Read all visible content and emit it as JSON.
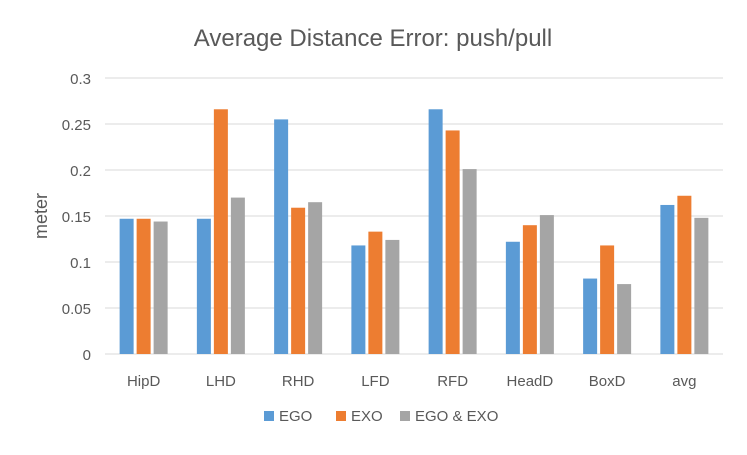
{
  "chart_data": {
    "type": "bar",
    "title": "Average Distance Error: push/pull",
    "xlabel": "",
    "ylabel": "meter",
    "ylim": [
      0,
      0.3
    ],
    "yticks": [
      "0",
      "0.05",
      "0.1",
      "0.15",
      "0.2",
      "0.25",
      "0.3"
    ],
    "ytick_values": [
      0,
      0.05,
      0.1,
      0.15,
      0.2,
      0.25,
      0.3
    ],
    "grid": true,
    "legend_position": "bottom",
    "categories": [
      "HipD",
      "LHD",
      "RHD",
      "LFD",
      "RFD",
      "HeadD",
      "BoxD",
      "avg"
    ],
    "series": [
      {
        "name": "EGO",
        "color": "#5B9BD5",
        "values": [
          0.147,
          0.147,
          0.255,
          0.118,
          0.266,
          0.122,
          0.082,
          0.162
        ]
      },
      {
        "name": "EXO",
        "color": "#ED7D31",
        "values": [
          0.147,
          0.266,
          0.159,
          0.133,
          0.243,
          0.14,
          0.118,
          0.172
        ]
      },
      {
        "name": "EGO & EXO",
        "color": "#A5A5A5",
        "values": [
          0.144,
          0.17,
          0.165,
          0.124,
          0.201,
          0.151,
          0.076,
          0.148
        ]
      }
    ]
  }
}
